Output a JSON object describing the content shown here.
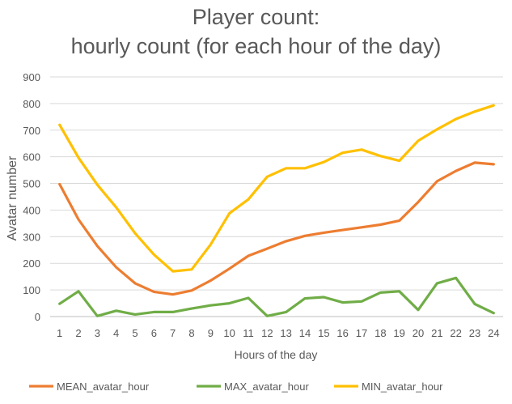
{
  "chart_data": {
    "type": "line",
    "title_lines": [
      "Player count:",
      "hourly count (for each hour of the day)"
    ],
    "xlabel": "Hours of the day",
    "ylabel": "Avatar number",
    "ylim": [
      0,
      900
    ],
    "yticks": [
      0,
      100,
      200,
      300,
      400,
      500,
      600,
      700,
      800,
      900
    ],
    "grid": true,
    "legend_position": "bottom",
    "categories": [
      "1",
      "2",
      "3",
      "4",
      "5",
      "6",
      "7",
      "8",
      "9",
      "10",
      "11",
      "12",
      "13",
      "14",
      "15",
      "16",
      "17",
      "18",
      "19",
      "20",
      "21",
      "22",
      "23",
      "24"
    ],
    "series": [
      {
        "name": "MEAN_avatar_hour",
        "color": "#ED7D31",
        "values": [
          497,
          365,
          265,
          185,
          125,
          93,
          83,
          98,
          135,
          180,
          228,
          255,
          283,
          303,
          315,
          325,
          335,
          345,
          360,
          430,
          508,
          547,
          578,
          572
        ]
      },
      {
        "name": "MAX_avatar_hour",
        "color": "#70AD47",
        "values": [
          48,
          95,
          2,
          22,
          8,
          17,
          17,
          30,
          42,
          50,
          70,
          2,
          17,
          68,
          73,
          53,
          57,
          90,
          95,
          25,
          125,
          145,
          47,
          13
        ]
      },
      {
        "name": "MIN_avatar_hour",
        "color": "#FFC000",
        "values": [
          720,
          597,
          495,
          410,
          313,
          233,
          170,
          177,
          270,
          388,
          440,
          525,
          557,
          557,
          580,
          615,
          627,
          603,
          585,
          660,
          703,
          742,
          770,
          793
        ]
      }
    ]
  }
}
